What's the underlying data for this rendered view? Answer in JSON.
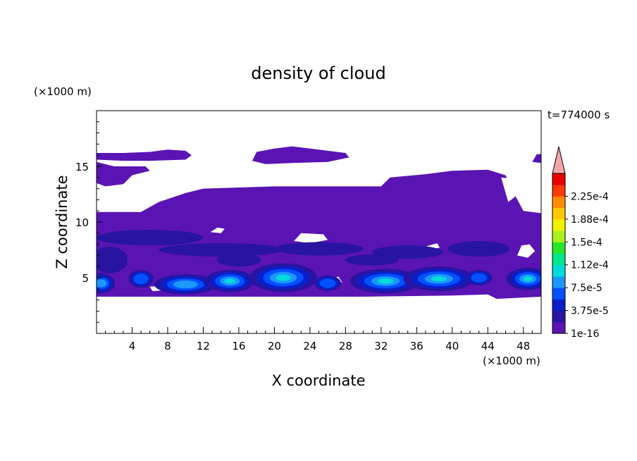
{
  "chart_data": {
    "type": "heatmap",
    "title": "density of cloud",
    "xlabel": "X coordinate",
    "ylabel": "Z coordinate",
    "x_unit": "(×1000 m)",
    "y_unit": "(×1000 m)",
    "time_label": "t=774000 s",
    "xlim": [
      0,
      50
    ],
    "ylim": [
      0,
      20
    ],
    "x_ticks": [
      4,
      8,
      12,
      16,
      20,
      24,
      28,
      32,
      36,
      40,
      44,
      48
    ],
    "y_ticks": [
      5,
      10,
      15
    ],
    "colorbar_levels": [
      1e-16,
      1.875e-05,
      3.75e-05,
      5.625e-05,
      7.5e-05,
      9.375e-05,
      0.0001125,
      0.00013125,
      0.00015,
      0.00016875,
      0.0001875,
      0.00020625,
      0.000225,
      0.00024375
    ],
    "colorbar_tick_labels": [
      "1e-16",
      "3.75e-5",
      "7.5e-5",
      "1.12e-4",
      "1.5e-4",
      "1.88e-4",
      "2.25e-4"
    ],
    "colorbar_colors": [
      "#5a14b4",
      "#2814a0",
      "#0a1ec8",
      "#0050ff",
      "#1e96ff",
      "#00dcdc",
      "#00e68c",
      "#28e628",
      "#aaf01e",
      "#f0f000",
      "#ffc800",
      "#ff8c00",
      "#ff3c00",
      "#e60000"
    ],
    "colorbar_extend_color": "#f4a6a6",
    "regions": [
      {
        "level": 0,
        "z_range": [
          3.2,
          16.8
        ],
        "description_x": [
          0,
          50
        ]
      },
      {
        "level": 3,
        "x_center": 0.8,
        "z_center": 4.5
      },
      {
        "level": 3,
        "x_center": 10,
        "z_center": 4.3
      },
      {
        "level": 3,
        "x_center": 15,
        "z_center": 4.6
      },
      {
        "level": 4,
        "x_center": 21,
        "z_center": 4.8
      },
      {
        "level": 4,
        "x_center": 32,
        "z_center": 4.6
      },
      {
        "level": 4,
        "x_center": 38.5,
        "z_center": 4.8
      },
      {
        "level": 3,
        "x_center": 48.5,
        "z_center": 4.8
      }
    ]
  }
}
